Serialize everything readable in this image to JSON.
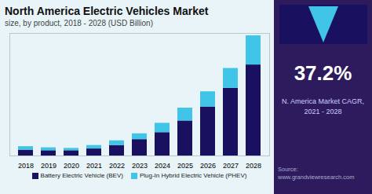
{
  "chart_data": {
    "type": "bar",
    "title": "North America Electric Vehicles Market",
    "subtitle": "size, by product, 2018 - 2028 (USD Billion)",
    "categories": [
      "2018",
      "2019",
      "2020",
      "2021",
      "2022",
      "2023",
      "2024",
      "2025",
      "2026",
      "2027",
      "2028"
    ],
    "series": [
      {
        "name": "Battery Electric Vehicle (BEV)",
        "color": "#1a1060",
        "values": [
          5,
          4.5,
          4.5,
          6,
          9,
          14,
          20,
          30,
          42,
          58,
          78
        ]
      },
      {
        "name": "Plug-In Hybrid Electric Vehicle (PHEV)",
        "color": "#40c4e8",
        "values": [
          3,
          2.5,
          2,
          3,
          4,
          5,
          8,
          11,
          13,
          17,
          25
        ]
      }
    ],
    "stacked": true,
    "ylim": [
      0,
      105
    ],
    "tick_labels": "x",
    "grid": false,
    "legend": "bottom",
    "annotations": [
      "37.2%",
      "N. America Market CAGR,\n2021 - 2028",
      "Source:\nwww.grandviewresearch.com"
    ]
  }
}
